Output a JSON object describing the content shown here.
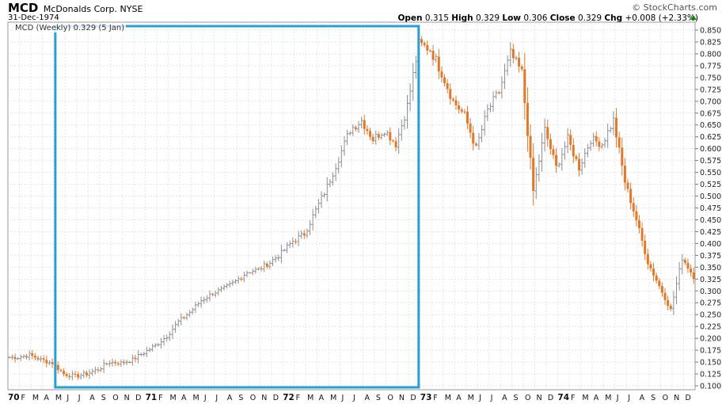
{
  "header": {
    "ticker": "MCD",
    "company": "McDonalds Corp. NYSE",
    "date": "31-Dec-1974",
    "brand": "© StockCharts.com",
    "ohlc": {
      "open_label": "Open",
      "open": "0.315",
      "high_label": "High",
      "high": "0.329",
      "low_label": "Low",
      "low": "0.306",
      "close_label": "Close",
      "close": "0.329",
      "chg_label": "Chg",
      "chg": "+0.008 (+2.33%)"
    }
  },
  "chart_data": {
    "type": "ohlc",
    "series_label": "MCD (Weekly) 0.329 (5 Jan)",
    "ylim": [
      0.1,
      0.85
    ],
    "y_ticks": [
      "0.100",
      "0.125",
      "0.150",
      "0.175",
      "0.200",
      "0.225",
      "0.250",
      "0.275",
      "0.300",
      "0.325",
      "0.350",
      "0.375",
      "0.400",
      "0.425",
      "0.450",
      "0.475",
      "0.500",
      "0.525",
      "0.550",
      "0.575",
      "0.600",
      "0.625",
      "0.650",
      "0.675",
      "0.700",
      "0.725",
      "0.750",
      "0.775",
      "0.800",
      "0.825",
      "0.850"
    ],
    "x_labels": [
      "70",
      "F",
      "M",
      "A",
      "M",
      "J",
      "J",
      "A",
      "S",
      "O",
      "N",
      "D",
      "71",
      "F",
      "M",
      "A",
      "M",
      "J",
      "J",
      "A",
      "S",
      "O",
      "N",
      "D",
      "72",
      "F",
      "M",
      "A",
      "M",
      "J",
      "J",
      "A",
      "S",
      "O",
      "N",
      "D",
      "73",
      "F",
      "M",
      "A",
      "M",
      "J",
      "J",
      "A",
      "S",
      "O",
      "N",
      "D",
      "74",
      "F",
      "M",
      "A",
      "M",
      "J",
      "J",
      "A",
      "S",
      "O",
      "N",
      "D"
    ],
    "up_color": "#8a9096",
    "down_color": "#e07a2a",
    "grid": true,
    "highlight_box": {
      "from_month_index": 4,
      "to_month_index": 35,
      "color": "#2a9fd6"
    },
    "monthly_close": [
      0.16,
      0.165,
      0.155,
      0.148,
      0.125,
      0.12,
      0.125,
      0.135,
      0.15,
      0.148,
      0.155,
      0.17,
      0.185,
      0.205,
      0.235,
      0.255,
      0.28,
      0.295,
      0.305,
      0.32,
      0.34,
      0.345,
      0.36,
      0.38,
      0.405,
      0.42,
      0.47,
      0.52,
      0.58,
      0.64,
      0.66,
      0.62,
      0.64,
      0.61,
      0.69,
      0.82,
      0.81,
      0.76,
      0.7,
      0.67,
      0.6,
      0.68,
      0.72,
      0.8,
      0.76,
      0.51,
      0.64,
      0.56,
      0.62,
      0.56,
      0.62,
      0.61,
      0.66,
      0.53,
      0.45,
      0.36,
      0.31,
      0.26,
      0.37,
      0.33
    ]
  }
}
